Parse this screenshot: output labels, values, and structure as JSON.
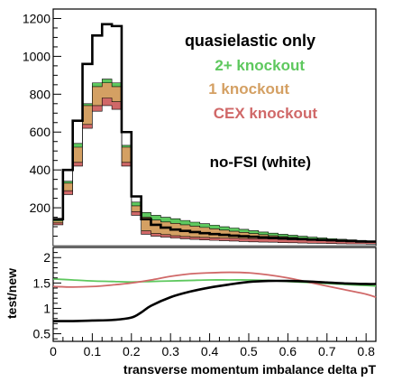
{
  "chart_data": [
    {
      "type": "histogram",
      "panel": "top",
      "xlim": [
        0,
        0.825
      ],
      "ylim": [
        0,
        1250
      ],
      "yticks": [
        200,
        400,
        600,
        800,
        1000,
        1200
      ],
      "ytick_labels": [
        "200",
        "400",
        "600",
        "800",
        "1000",
        "1200"
      ],
      "bin_edges": [
        0,
        0.025,
        0.05,
        0.075,
        0.1,
        0.125,
        0.15,
        0.175,
        0.2,
        0.225,
        0.25,
        0.275,
        0.3,
        0.325,
        0.35,
        0.375,
        0.4,
        0.425,
        0.45,
        0.475,
        0.5,
        0.525,
        0.55,
        0.575,
        0.6,
        0.625,
        0.65,
        0.675,
        0.7,
        0.725,
        0.75,
        0.775,
        0.8,
        0.825
      ],
      "legend_placement": "top-right",
      "legend": [
        {
          "label": "quasielastic only",
          "color": "#000000"
        },
        {
          "label": "2+ knockout",
          "color": "#5ec85e"
        },
        {
          "label": "1 knockout",
          "color": "#d4a063"
        },
        {
          "label": "CEX knockout",
          "color": "#d06868"
        }
      ],
      "annotation": "no-FSI (white)",
      "series": [
        {
          "name": "quasielastic only",
          "style": "step-line",
          "color": "#000000",
          "values": [
            140,
            400,
            660,
            960,
            1110,
            1170,
            1160,
            600,
            260,
            140,
            110,
            95,
            85,
            78,
            72,
            66,
            61,
            57,
            53,
            50,
            47,
            44,
            42,
            39,
            36,
            34,
            32,
            30,
            28,
            26,
            24,
            22,
            21
          ]
        },
        {
          "name": "CEX knockout",
          "style": "stack-top",
          "color": "#d06868",
          "values": [
            120,
            290,
            440,
            640,
            740,
            780,
            760,
            440,
            180,
            78,
            64,
            58,
            52,
            48,
            45,
            43,
            41,
            40,
            39,
            38,
            37,
            36,
            35,
            33,
            32,
            30,
            29,
            27,
            26,
            25,
            24,
            22,
            21
          ]
        },
        {
          "name": "1 knockout",
          "style": "stack-top",
          "color": "#d4a063",
          "values": [
            130,
            330,
            520,
            740,
            840,
            860,
            840,
            520,
            210,
            150,
            135,
            125,
            118,
            110,
            103,
            96,
            89,
            82,
            76,
            70,
            64,
            58,
            53,
            48,
            44,
            40,
            36,
            33,
            30,
            27,
            25,
            23,
            21
          ]
        },
        {
          "name": "2+ knockout",
          "style": "stack-top",
          "color": "#5ec85e",
          "values": [
            135,
            340,
            540,
            750,
            860,
            880,
            860,
            530,
            230,
            175,
            160,
            150,
            142,
            133,
            124,
            116,
            108,
            100,
            93,
            86,
            79,
            72,
            66,
            60,
            55,
            50,
            45,
            41,
            37,
            34,
            31,
            28,
            25
          ]
        },
        {
          "name": "no-FSI (white)",
          "style": "fill-white",
          "color": "#ffffff",
          "values": [
            110,
            270,
            420,
            620,
            710,
            740,
            720,
            420,
            160,
            60,
            50,
            45,
            40,
            36,
            33,
            30,
            28,
            26,
            24,
            22,
            20,
            19,
            18,
            16,
            15,
            14,
            13,
            12,
            11,
            10,
            9,
            9,
            8
          ]
        }
      ]
    },
    {
      "type": "line",
      "panel": "bottom",
      "xlabel": "transverse momentum imbalance delta pT",
      "ylabel": "test/new",
      "xlim": [
        0,
        0.825
      ],
      "ylim": [
        0.35,
        2.2
      ],
      "xticks": [
        0,
        0.1,
        0.2,
        0.3,
        0.4,
        0.5,
        0.6,
        0.7,
        0.8
      ],
      "xtick_labels": [
        "0",
        "0.1",
        "0.2",
        "0.3",
        "0.4",
        "0.5",
        "0.6",
        "0.7",
        "0.8"
      ],
      "yticks": [
        0.5,
        1,
        1.5,
        2
      ],
      "ytick_labels": [
        "0.5",
        "1",
        "1.5",
        "2"
      ],
      "series": [
        {
          "color": "#5ec85e",
          "x": [
            0,
            0.05,
            0.1,
            0.15,
            0.2,
            0.25,
            0.3,
            0.35,
            0.4,
            0.45,
            0.5,
            0.55,
            0.6,
            0.65,
            0.7,
            0.75,
            0.8,
            0.825
          ],
          "y": [
            1.58,
            1.56,
            1.54,
            1.53,
            1.52,
            1.53,
            1.54,
            1.55,
            1.56,
            1.56,
            1.56,
            1.55,
            1.53,
            1.51,
            1.49,
            1.47,
            1.45,
            1.44
          ]
        },
        {
          "color": "#d06868",
          "x": [
            0,
            0.05,
            0.1,
            0.15,
            0.2,
            0.25,
            0.3,
            0.35,
            0.4,
            0.45,
            0.5,
            0.55,
            0.6,
            0.65,
            0.7,
            0.75,
            0.8,
            0.825
          ],
          "y": [
            1.43,
            1.42,
            1.43,
            1.46,
            1.5,
            1.56,
            1.63,
            1.68,
            1.7,
            1.71,
            1.7,
            1.66,
            1.6,
            1.52,
            1.44,
            1.36,
            1.28,
            1.22
          ]
        },
        {
          "color": "#000000",
          "x": [
            0,
            0.05,
            0.1,
            0.15,
            0.2,
            0.225,
            0.25,
            0.3,
            0.35,
            0.4,
            0.45,
            0.5,
            0.55,
            0.6,
            0.65,
            0.7,
            0.75,
            0.8,
            0.825
          ],
          "y": [
            0.75,
            0.75,
            0.76,
            0.77,
            0.82,
            0.92,
            1.05,
            1.22,
            1.33,
            1.41,
            1.47,
            1.52,
            1.54,
            1.54,
            1.53,
            1.51,
            1.49,
            1.48,
            1.48
          ]
        }
      ]
    }
  ]
}
